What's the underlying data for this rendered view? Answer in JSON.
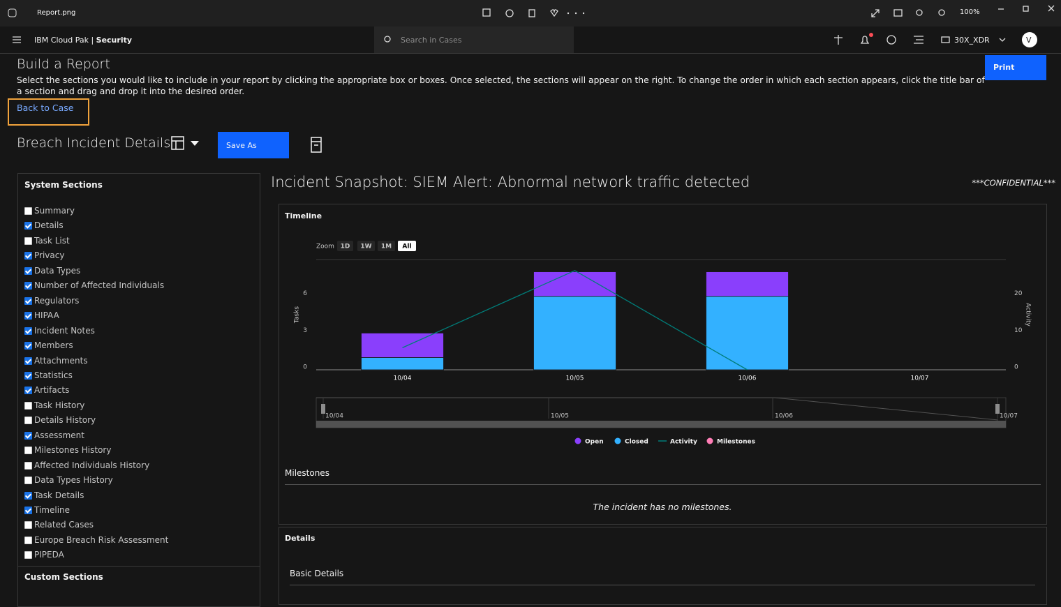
{
  "window": {
    "file": "Report.png",
    "zoom": "100%"
  },
  "app": {
    "brand_prefix": "IBM Cloud Pak |",
    "brand_name": "Security",
    "search_placeholder": "Search in Cases",
    "account": "30X_XDR",
    "avatar": "V"
  },
  "page": {
    "title": "Build a Report",
    "instructions": "Select the sections you would like to include in your report by clicking the appropriate box or boxes. Once selected, the sections will appear on the right. To change the order in which each section appears, click the title bar of a section and drag and drop it into the desired order.",
    "back_link": "Back to Case",
    "print": "Print",
    "template": "Breach Incident Details",
    "save_as": "Save As"
  },
  "sections": {
    "system_title": "System Sections",
    "custom_title": "Custom Sections",
    "items": [
      {
        "label": "Summary",
        "checked": false
      },
      {
        "label": "Details",
        "checked": true
      },
      {
        "label": "Task List",
        "checked": false
      },
      {
        "label": "Privacy",
        "checked": true
      },
      {
        "label": "Data Types",
        "checked": true
      },
      {
        "label": "Number of Affected Individuals",
        "checked": true
      },
      {
        "label": "Regulators",
        "checked": true
      },
      {
        "label": "HIPAA",
        "checked": true
      },
      {
        "label": "Incident Notes",
        "checked": true
      },
      {
        "label": "Members",
        "checked": true
      },
      {
        "label": "Attachments",
        "checked": true
      },
      {
        "label": "Statistics",
        "checked": true
      },
      {
        "label": "Artifacts",
        "checked": true
      },
      {
        "label": "Task History",
        "checked": false
      },
      {
        "label": "Details History",
        "checked": false
      },
      {
        "label": "Assessment",
        "checked": true
      },
      {
        "label": "Milestones History",
        "checked": false
      },
      {
        "label": "Affected Individuals History",
        "checked": false
      },
      {
        "label": "Data Types History",
        "checked": false
      },
      {
        "label": "Task Details",
        "checked": true
      },
      {
        "label": "Timeline",
        "checked": true
      },
      {
        "label": "Related Cases",
        "checked": false
      },
      {
        "label": "Europe Breach Risk Assessment",
        "checked": false
      },
      {
        "label": "PIPEDA",
        "checked": false
      }
    ]
  },
  "report": {
    "title": "Incident Snapshot: SIEM Alert: Abnormal network traffic detected",
    "confidential": "***CONFIDENTIAL***",
    "timeline": {
      "title": "Timeline",
      "zoom_label": "Zoom",
      "zoom_options": [
        {
          "label": "1D",
          "selected": false
        },
        {
          "label": "1W",
          "selected": false
        },
        {
          "label": "1M",
          "selected": false
        },
        {
          "label": "All",
          "selected": true
        }
      ],
      "navigator_labels": [
        "10/04",
        "10/05",
        "10/06",
        "10/07"
      ],
      "chart_data": {
        "type": "bar",
        "stacked": true,
        "categories": [
          "10/04",
          "10/05",
          "10/06",
          "10/07"
        ],
        "ylabel": "Tasks",
        "y2label": "Activity",
        "ylim": [
          0,
          9
        ],
        "yticks": [
          0,
          3,
          6
        ],
        "y2lim": [
          0,
          30
        ],
        "y2ticks": [
          0,
          10,
          20
        ],
        "grid": false,
        "series": [
          {
            "name": "Open",
            "color": "#8a3ffc",
            "values": [
              2,
              2,
              2,
              0
            ]
          },
          {
            "name": "Closed",
            "color": "#33b1ff",
            "values": [
              1,
              6,
              6,
              0
            ]
          },
          {
            "name": "Activity",
            "color": "#007d79",
            "type": "line",
            "axis": "y2",
            "values": [
              6,
              27,
              0,
              null
            ]
          },
          {
            "name": "Milestones",
            "color": "#ff7eb6",
            "type": "marker",
            "values": [
              null,
              null,
              null,
              null
            ]
          }
        ]
      }
    },
    "milestones": {
      "title": "Milestones",
      "empty": "The incident has no milestones."
    },
    "details": {
      "title": "Details",
      "basic": "Basic Details"
    }
  }
}
